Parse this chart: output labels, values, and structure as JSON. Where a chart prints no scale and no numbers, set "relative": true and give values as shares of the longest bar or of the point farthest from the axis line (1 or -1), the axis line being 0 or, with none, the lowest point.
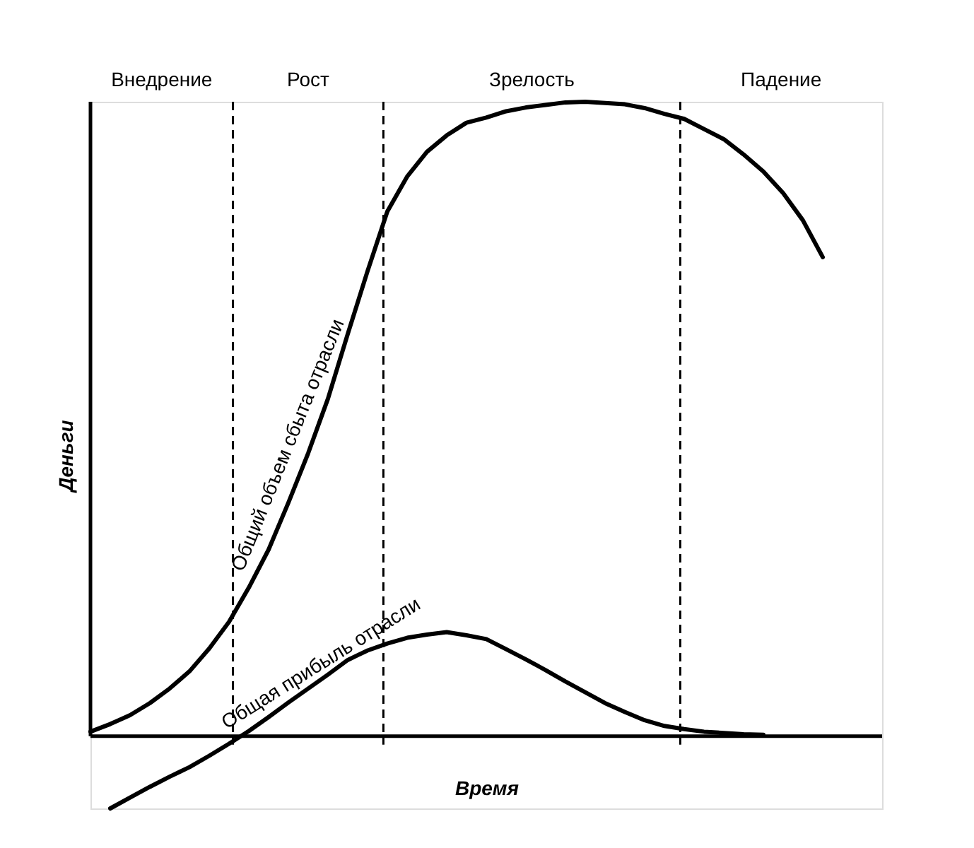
{
  "chart_data": {
    "type": "line",
    "relative": true,
    "xlabel": "Время",
    "ylabel": "Деньги",
    "tick_labels": false,
    "grid": false,
    "marker": "none",
    "line_style": "solid",
    "categories": [
      null,
      null,
      null,
      null,
      null,
      null,
      null,
      null,
      null,
      null,
      null,
      null,
      null,
      null,
      null,
      null,
      null,
      null,
      null,
      null,
      null,
      null,
      null,
      null,
      null,
      null,
      null,
      null,
      null,
      null,
      null,
      null,
      null,
      null,
      null,
      null,
      null,
      null,
      null,
      null,
      null
    ],
    "series": [
      {
        "name": "Общий объем сбыта отрасли",
        "color": "#000000",
        "values": [
          0.007,
          0.019,
          0.033,
          0.052,
          0.075,
          0.102,
          0.138,
          0.18,
          0.234,
          0.294,
          0.368,
          0.446,
          0.532,
          0.634,
          0.733,
          0.827,
          0.882,
          0.921,
          0.947,
          0.967,
          0.975,
          0.985,
          0.991,
          0.995,
          0.999,
          1.0,
          0.998,
          0.996,
          0.99,
          0.981,
          0.973,
          0.957,
          0.941,
          0.917,
          0.89,
          0.856,
          0.813,
          0.755,
          null,
          null,
          null
        ]
      },
      {
        "name": "Общая прибыль отрасли",
        "color": "#000000",
        "values": [
          null,
          -0.114,
          -0.097,
          -0.08,
          -0.064,
          -0.049,
          -0.031,
          -0.012,
          0.008,
          0.03,
          0.053,
          0.075,
          0.097,
          0.12,
          0.135,
          0.146,
          0.155,
          0.16,
          0.164,
          0.159,
          0.153,
          0.137,
          0.121,
          0.104,
          0.086,
          0.069,
          0.052,
          0.038,
          0.025,
          0.016,
          0.011,
          0.007,
          0.005,
          0.003,
          0.002,
          null,
          null,
          null,
          null,
          null,
          null
        ]
      }
    ],
    "annotations": [
      "Внедрение",
      "Рост",
      "Зрелость",
      "Падение"
    ]
  }
}
